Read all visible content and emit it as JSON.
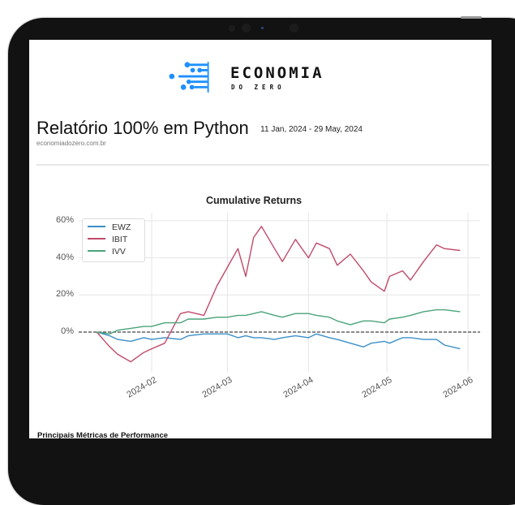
{
  "device": {
    "frame_color": "#121212"
  },
  "logo": {
    "title": "ECONOMIA",
    "subtitle": "DO ZERO",
    "accent": "#1e90ff"
  },
  "report": {
    "title": "Relatório 100% em Python",
    "date_range": "11 Jan, 2024 - 29 May, 2024",
    "site": "economiadozero.com.br"
  },
  "metrics": {
    "section_title": "Principais Métricas de Performance"
  },
  "chart_data": {
    "type": "line",
    "title": "Cumulative Returns",
    "xlabel": "",
    "ylabel": "",
    "ylim": [
      -18,
      62
    ],
    "yticks": [
      "0%",
      "20%",
      "40%",
      "60%"
    ],
    "ytick_values": [
      0,
      20,
      40,
      60
    ],
    "xticks": [
      "2024-02",
      "2024-03",
      "2024-04",
      "2024-05",
      "2024-06"
    ],
    "grid": true,
    "legend_position": "upper left",
    "baseline": 0,
    "x": [
      "2024-01-11",
      "2024-01-16",
      "2024-01-19",
      "2024-01-24",
      "2024-01-29",
      "2024-02-01",
      "2024-02-06",
      "2024-02-12",
      "2024-02-15",
      "2024-02-21",
      "2024-02-26",
      "2024-03-01",
      "2024-03-05",
      "2024-03-08",
      "2024-03-11",
      "2024-03-14",
      "2024-03-19",
      "2024-03-22",
      "2024-03-27",
      "2024-04-01",
      "2024-04-04",
      "2024-04-09",
      "2024-04-12",
      "2024-04-17",
      "2024-04-22",
      "2024-04-25",
      "2024-04-30",
      "2024-05-02",
      "2024-05-07",
      "2024-05-10",
      "2024-05-15",
      "2024-05-20",
      "2024-05-23",
      "2024-05-29"
    ],
    "series": [
      {
        "name": "EWZ",
        "color": "#3a8fc7",
        "values": [
          0,
          -2,
          -4,
          -5,
          -3,
          -4,
          -3,
          -4,
          -2,
          -1,
          -1,
          -1,
          -3,
          -2,
          -3,
          -3,
          -4,
          -3,
          -2,
          -3,
          -1,
          -3,
          -4,
          -6,
          -8,
          -6,
          -5,
          -6,
          -3,
          -3,
          -4,
          -4,
          -7,
          -9
        ]
      },
      {
        "name": "IBIT",
        "color": "#c04a6a",
        "values": [
          0,
          -8,
          -12,
          -16,
          -11,
          -9,
          -6,
          10,
          11,
          9,
          25,
          35,
          45,
          30,
          51,
          57,
          45,
          38,
          50,
          40,
          48,
          45,
          36,
          42,
          33,
          27,
          22,
          30,
          33,
          28,
          38,
          47,
          45,
          44
        ]
      },
      {
        "name": "IVV",
        "color": "#4aa37a",
        "values": [
          0,
          -1,
          1,
          2,
          3,
          3,
          5,
          5,
          7,
          7,
          8,
          8,
          9,
          9,
          10,
          11,
          9,
          8,
          10,
          10,
          9,
          8,
          6,
          4,
          6,
          6,
          5,
          7,
          8,
          9,
          11,
          12,
          12,
          11
        ]
      }
    ]
  }
}
